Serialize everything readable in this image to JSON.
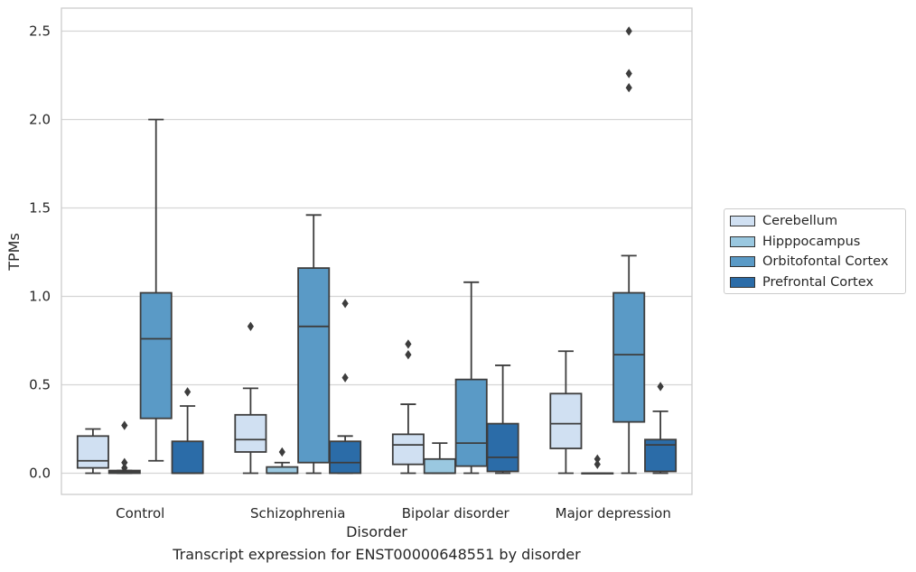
{
  "caption": "Transcript expression for ENST00000648551 by disorder",
  "chart_data": {
    "type": "box",
    "xlabel": "Disorder",
    "ylabel": "TPMs",
    "ylim": [
      -0.12,
      2.63
    ],
    "yticks": [
      0.0,
      0.5,
      1.0,
      1.5,
      2.0,
      2.5
    ],
    "ytick_labels": [
      "0.0",
      "0.5",
      "1.0",
      "1.5",
      "2.0",
      "2.5"
    ],
    "grid": "horizontal",
    "legend_position": "right",
    "categories": [
      "Control",
      "Schizophrenia",
      "Bipolar disorder",
      "Major depression"
    ],
    "series": [
      {
        "name": "Cerebellum",
        "color": "#d0e0f2",
        "boxes": [
          {
            "whislo": 0.0,
            "q1": 0.03,
            "med": 0.07,
            "q3": 0.21,
            "whishi": 0.25,
            "fliers": []
          },
          {
            "whislo": 0.0,
            "q1": 0.12,
            "med": 0.19,
            "q3": 0.33,
            "whishi": 0.48,
            "fliers": [
              0.83
            ]
          },
          {
            "whislo": 0.0,
            "q1": 0.05,
            "med": 0.16,
            "q3": 0.22,
            "whishi": 0.39,
            "fliers": [
              0.67,
              0.73
            ]
          },
          {
            "whislo": 0.0,
            "q1": 0.14,
            "med": 0.28,
            "q3": 0.45,
            "whishi": 0.69,
            "fliers": []
          }
        ]
      },
      {
        "name": "Hipppocampus",
        "color": "#9ac8e0",
        "boxes": [
          {
            "whislo": 0.0,
            "q1": 0.0,
            "med": 0.008,
            "q3": 0.015,
            "whishi": 0.015,
            "fliers": [
              0.03,
              0.06,
              0.27
            ]
          },
          {
            "whislo": 0.0,
            "q1": 0.0,
            "med": 0.0,
            "q3": 0.035,
            "whishi": 0.06,
            "fliers": [
              0.12
            ]
          },
          {
            "whislo": 0.0,
            "q1": 0.0,
            "med": 0.0,
            "q3": 0.08,
            "whishi": 0.17,
            "fliers": []
          },
          {
            "whislo": 0.0,
            "q1": 0.0,
            "med": 0.0,
            "q3": 0.0,
            "whishi": 0.0,
            "fliers": [
              0.05,
              0.08
            ]
          }
        ]
      },
      {
        "name": "Orbitofontal Cortex",
        "color": "#5a9ac6",
        "boxes": [
          {
            "whislo": 0.07,
            "q1": 0.31,
            "med": 0.76,
            "q3": 1.02,
            "whishi": 2.0,
            "fliers": []
          },
          {
            "whislo": 0.0,
            "q1": 0.06,
            "med": 0.83,
            "q3": 1.16,
            "whishi": 1.46,
            "fliers": []
          },
          {
            "whislo": 0.0,
            "q1": 0.04,
            "med": 0.17,
            "q3": 0.53,
            "whishi": 1.08,
            "fliers": []
          },
          {
            "whislo": 0.0,
            "q1": 0.29,
            "med": 0.67,
            "q3": 1.02,
            "whishi": 1.23,
            "fliers": [
              2.18,
              2.26,
              2.5
            ]
          }
        ]
      },
      {
        "name": "Prefrontal Cortex",
        "color": "#2b6ca8",
        "boxes": [
          {
            "whislo": 0.0,
            "q1": 0.0,
            "med": 0.0,
            "q3": 0.18,
            "whishi": 0.38,
            "fliers": [
              0.46
            ]
          },
          {
            "whislo": 0.0,
            "q1": 0.0,
            "med": 0.06,
            "q3": 0.18,
            "whishi": 0.21,
            "fliers": [
              0.54,
              0.96
            ]
          },
          {
            "whislo": 0.0,
            "q1": 0.01,
            "med": 0.09,
            "q3": 0.28,
            "whishi": 0.61,
            "fliers": []
          },
          {
            "whislo": 0.0,
            "q1": 0.01,
            "med": 0.16,
            "q3": 0.19,
            "whishi": 0.35,
            "fliers": [
              0.49
            ]
          }
        ]
      }
    ]
  }
}
